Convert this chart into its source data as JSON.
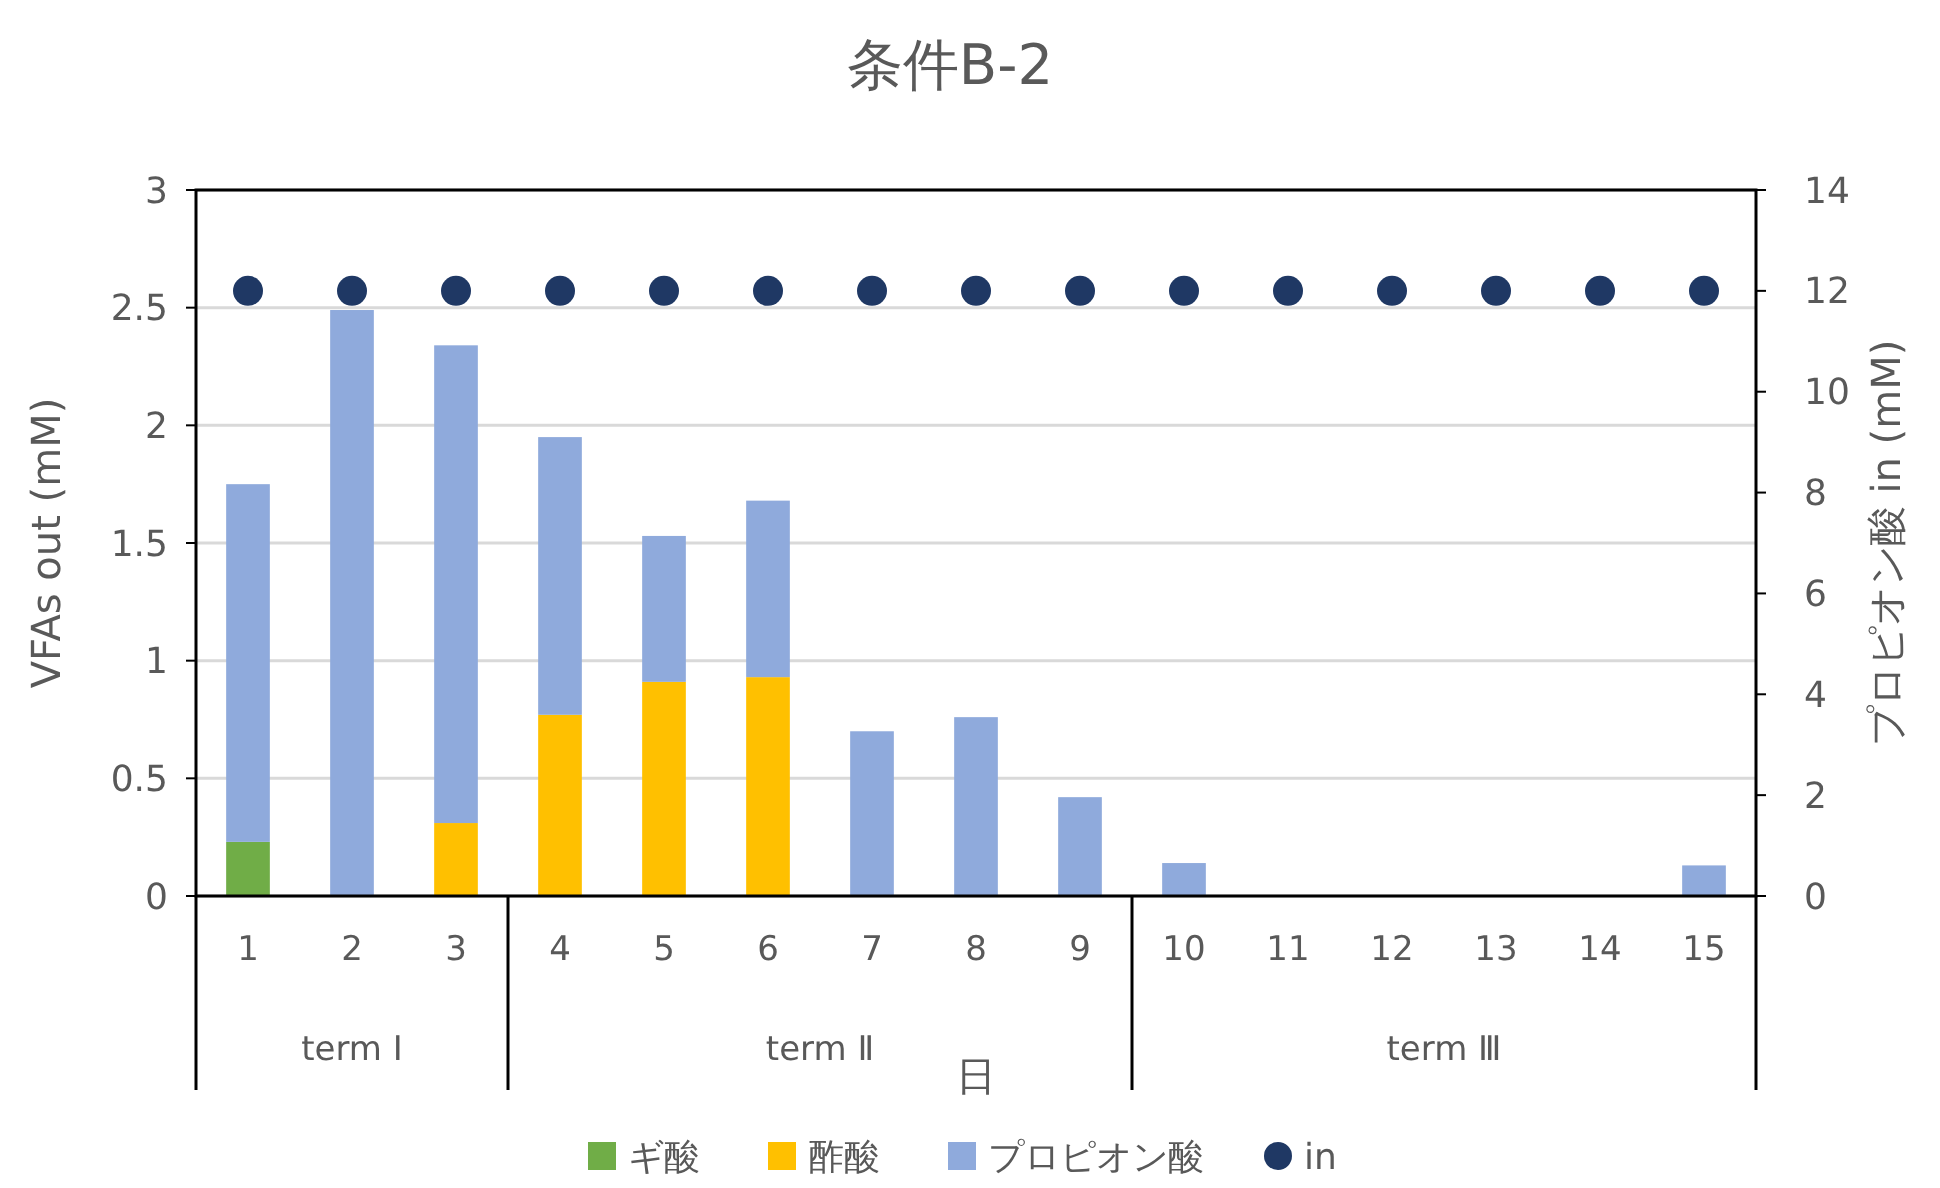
{
  "chart_data": {
    "type": "bar",
    "title": "条件B-2",
    "xlabel": "日",
    "ylabel": "VFAs out (mM)",
    "y2label": "プロピオン酸 in (mM)",
    "categories": [
      "1",
      "2",
      "3",
      "4",
      "5",
      "6",
      "7",
      "8",
      "9",
      "10",
      "11",
      "12",
      "13",
      "14",
      "15"
    ],
    "stacked": true,
    "series": [
      {
        "name": "ギ酸",
        "color": "#70ad47",
        "values": [
          0.23,
          0,
          0,
          0,
          0,
          0,
          0,
          0,
          0,
          0,
          0,
          0,
          0,
          0,
          0
        ]
      },
      {
        "name": "酢酸",
        "color": "#ffc000",
        "values": [
          0,
          0,
          0.31,
          0.77,
          0.91,
          0.93,
          0,
          0,
          0,
          0,
          0,
          0,
          0,
          0,
          0
        ]
      },
      {
        "name": "プロピオン酸",
        "color": "#8faadc",
        "values": [
          1.52,
          2.49,
          2.03,
          1.18,
          0.62,
          0.75,
          0.7,
          0.76,
          0.42,
          0.14,
          0,
          0,
          0,
          0,
          0.13
        ]
      },
      {
        "name": "in",
        "type": "scatter",
        "axis": "y2",
        "color": "#1f3864",
        "marker": "circle",
        "values": [
          12,
          12,
          12,
          12,
          12,
          12,
          12,
          12,
          12,
          12,
          12,
          12,
          12,
          12,
          12
        ]
      }
    ],
    "ylim": [
      0,
      3
    ],
    "yticks": [
      0,
      0.5,
      1,
      1.5,
      2,
      2.5,
      3
    ],
    "y2lim": [
      0,
      14
    ],
    "y2ticks": [
      0,
      2,
      4,
      6,
      8,
      10,
      12,
      14
    ],
    "annotations": [
      "term Ⅰ",
      "term Ⅱ",
      "term Ⅲ"
    ],
    "grid": "y",
    "legend": "bottom"
  }
}
